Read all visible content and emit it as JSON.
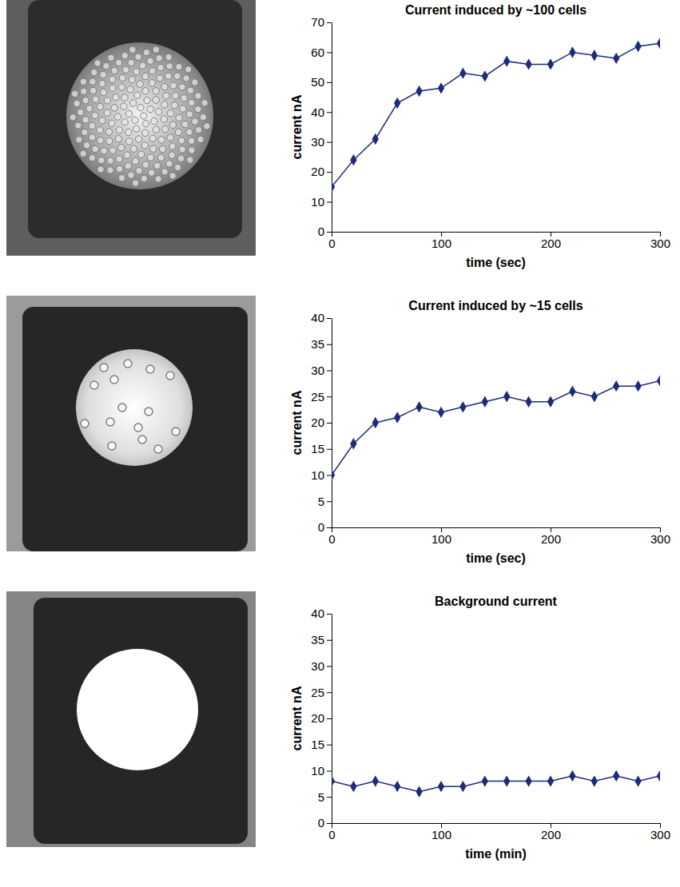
{
  "chart_data": [
    {
      "type": "line",
      "title": "Current induced by ~100 cells",
      "xlabel": "time (sec)",
      "ylabel": "current nA",
      "x": [
        0,
        20,
        40,
        60,
        80,
        100,
        120,
        140,
        160,
        180,
        200,
        220,
        240,
        260,
        280,
        300
      ],
      "values": [
        15,
        24,
        31,
        43,
        47,
        48,
        53,
        52,
        57,
        56,
        56,
        60,
        59,
        58,
        62,
        63
      ],
      "color": "#1f2a7a",
      "marker": "diamond",
      "line_style": "solid",
      "xlim": [
        0,
        300
      ],
      "xticks": [
        0,
        100,
        200,
        300
      ],
      "ylim": [
        0,
        70
      ],
      "yticks": [
        0,
        10,
        20,
        30,
        40,
        50,
        60,
        70
      ]
    },
    {
      "type": "line",
      "title": "Current induced by ~15 cells",
      "xlabel": "time (sec)",
      "ylabel": "current nA",
      "x": [
        0,
        20,
        40,
        60,
        80,
        100,
        120,
        140,
        160,
        180,
        200,
        220,
        240,
        260,
        280,
        300
      ],
      "values": [
        10,
        16,
        20,
        21,
        23,
        22,
        23,
        24,
        25,
        24,
        24,
        26,
        25,
        27,
        27,
        28
      ],
      "color": "#1f2a7a",
      "marker": "diamond",
      "line_style": "solid",
      "xlim": [
        0,
        300
      ],
      "xticks": [
        0,
        100,
        200,
        300
      ],
      "ylim": [
        0,
        40
      ],
      "yticks": [
        0,
        5,
        10,
        15,
        20,
        25,
        30,
        35,
        40
      ]
    },
    {
      "type": "line",
      "title": "Background current",
      "xlabel": "time (min)",
      "ylabel": "current nA",
      "x": [
        0,
        20,
        40,
        60,
        80,
        100,
        120,
        140,
        160,
        180,
        200,
        220,
        240,
        260,
        280,
        300
      ],
      "values": [
        8,
        7,
        8,
        7,
        6,
        7,
        7,
        8,
        8,
        8,
        8,
        9,
        8,
        9,
        8,
        9
      ],
      "color": "#1f2a7a",
      "marker": "diamond",
      "line_style": "solid",
      "xlim": [
        0,
        300
      ],
      "xticks": [
        0,
        100,
        200,
        300
      ],
      "ylim": [
        0,
        40
      ],
      "yticks": [
        0,
        5,
        10,
        15,
        20,
        25,
        30,
        35,
        40
      ]
    }
  ]
}
